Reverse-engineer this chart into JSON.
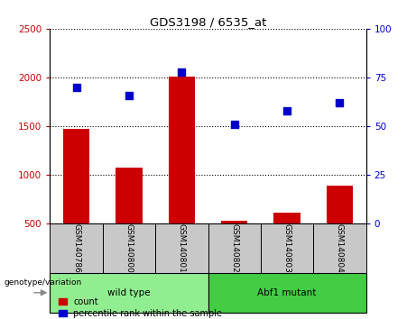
{
  "title": "GDS3198 / 6535_at",
  "samples": [
    "GSM140786",
    "GSM140800",
    "GSM140801",
    "GSM140802",
    "GSM140803",
    "GSM140804"
  ],
  "counts": [
    1470,
    1080,
    2010,
    530,
    615,
    895
  ],
  "percentile_ranks": [
    70,
    66,
    78,
    51,
    58,
    62
  ],
  "ylim_left": [
    500,
    2500
  ],
  "ylim_right": [
    0,
    100
  ],
  "yticks_left": [
    500,
    1000,
    1500,
    2000,
    2500
  ],
  "yticks_right": [
    0,
    25,
    50,
    75,
    100
  ],
  "bar_color": "#cc0000",
  "scatter_color": "#0000cc",
  "groups": [
    {
      "label": "wild type",
      "indices": [
        0,
        1,
        2
      ],
      "color": "#90ee90"
    },
    {
      "label": "Abf1 mutant",
      "indices": [
        3,
        4,
        5
      ],
      "color": "#44cc44"
    }
  ],
  "group_row_color": "#c8c8c8",
  "legend_count_label": "count",
  "legend_pct_label": "percentile rank within the sample",
  "genotype_label": "genotype/variation",
  "bg_color": "#ffffff",
  "tick_color_left": "#cc0000",
  "tick_color_right": "#0000cc",
  "bar_bottom": 500
}
